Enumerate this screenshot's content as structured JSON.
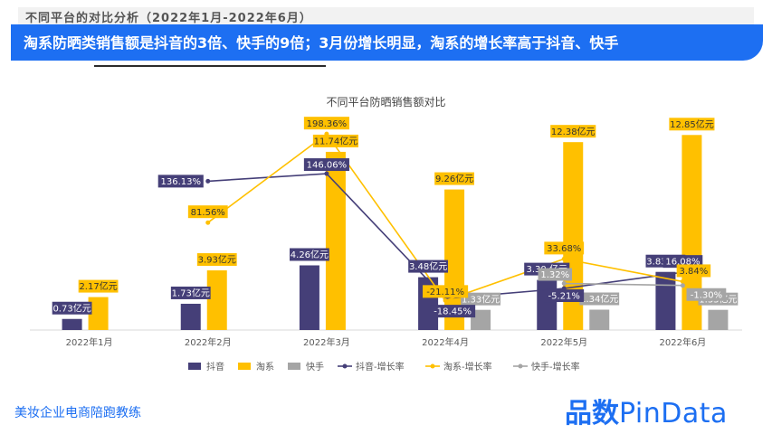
{
  "header": {
    "section_title": "不同平台的对比分析（2022年1月-2022年6月）",
    "banner": "淘系防晒类销售额是抖音的3倍、快手的9倍；3月份增长明显，淘系的增长率高于抖音、快手"
  },
  "footer": {
    "left_text": "美妆企业电商陪跑教练",
    "logo_cn": "品数",
    "logo_en": "PinData"
  },
  "colors": {
    "douyin": "#453f78",
    "taoxi": "#ffc000",
    "kuaishou": "#a5a5a5",
    "banner": "#1d6ff2"
  },
  "chart_data": {
    "type": "bar",
    "title": "不同平台防晒销售额对比",
    "categories": [
      "2022年1月",
      "2022年2月",
      "2022年3月",
      "2022年4月",
      "2022年5月",
      "2022年6月"
    ],
    "value_unit_label": "亿元",
    "series": [
      {
        "name": "抖音",
        "type": "bar",
        "values": [
          0.73,
          1.73,
          4.26,
          3.48,
          3.3,
          3.83
        ],
        "labels": [
          "0.73亿元",
          "1.73亿元",
          "4.26亿元",
          "3.48亿元",
          "3.30 亿元",
          "3.83亿元"
        ]
      },
      {
        "name": "淘系",
        "type": "bar",
        "values": [
          2.17,
          3.93,
          11.74,
          9.26,
          12.38,
          12.85
        ],
        "labels": [
          "2.17亿元",
          "3.93亿元",
          "11.74亿元",
          "9.26亿元",
          "12.38亿元",
          "12.85亿元"
        ]
      },
      {
        "name": "快手",
        "type": "bar",
        "values": [
          null,
          null,
          null,
          1.33,
          1.34,
          1.33
        ],
        "labels": [
          "",
          "",
          "",
          "1.33亿元",
          "1.34亿元",
          "1.33亿元"
        ]
      },
      {
        "name": "抖音-增长率",
        "type": "line",
        "values": [
          null,
          136.13,
          146.06,
          -18.45,
          -5.21,
          16.08
        ],
        "labels": [
          "",
          "136.13%",
          "146.06%",
          "-18.45%",
          "-5.21%",
          "16.08%"
        ]
      },
      {
        "name": "淘系-增长率",
        "type": "line",
        "values": [
          null,
          81.56,
          198.36,
          -21.11,
          33.68,
          3.84
        ],
        "labels": [
          "",
          "81.56%",
          "198.36%",
          "-21.11%",
          "33.68%",
          "3.84%"
        ]
      },
      {
        "name": "快手-增长率",
        "type": "line",
        "values": [
          null,
          null,
          null,
          null,
          1.32,
          -1.3
        ],
        "labels": [
          "",
          "",
          "",
          "",
          "1.32%",
          "-1.30%"
        ]
      }
    ],
    "bar_ylim": [
      0,
      14
    ],
    "rate_ylim": [
      -60,
      220
    ],
    "grid": false,
    "legend_position": "bottom"
  }
}
